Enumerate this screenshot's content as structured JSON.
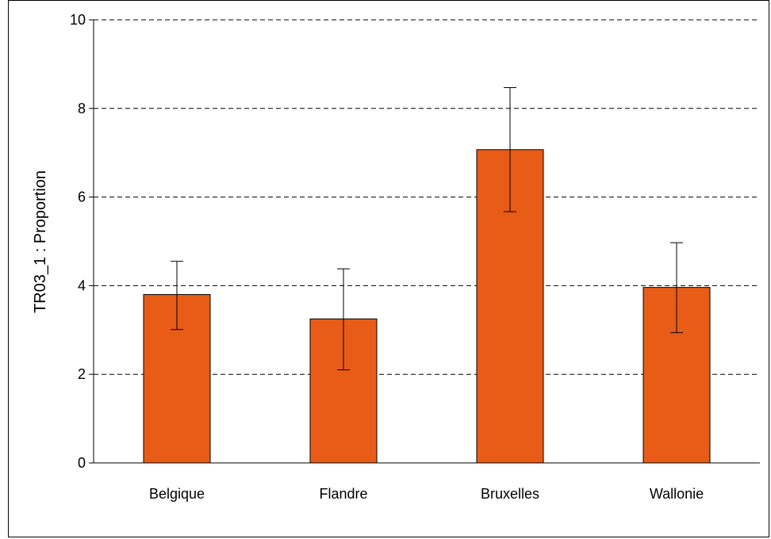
{
  "chart_data": {
    "type": "bar",
    "title": "",
    "xlabel": "",
    "ylabel": "TR03_1 : Proportion",
    "ylim": [
      0,
      10
    ],
    "yticks": [
      0,
      2,
      4,
      6,
      8,
      10
    ],
    "grid": true,
    "categories": [
      "Belgique",
      "Flandre",
      "Bruxelles",
      "Wallonie"
    ],
    "values": [
      3.8,
      3.25,
      7.07,
      3.96
    ],
    "error_low": [
      3.01,
      2.1,
      5.67,
      2.94
    ],
    "error_high": [
      4.55,
      4.38,
      8.47,
      4.97
    ],
    "colors": {
      "bar": "#e85c17",
      "bar_stroke": "#000000",
      "grid": "#000000",
      "axis": "#000000"
    }
  }
}
